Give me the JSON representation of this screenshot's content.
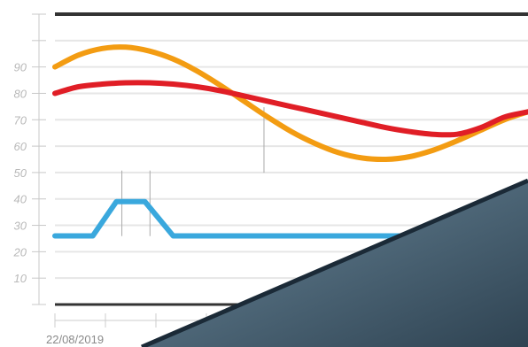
{
  "chart_data": {
    "type": "line",
    "title": "",
    "xlabel": "",
    "ylabel": "",
    "ylim": [
      0,
      110
    ],
    "y_ticks": [
      10,
      20,
      30,
      40,
      50,
      60,
      70,
      80,
      90
    ],
    "x_start_label": "22/08/2019",
    "grid": true,
    "legend": "none",
    "series": [
      {
        "color": "#f39c12",
        "x": [
          0,
          0.05,
          0.1,
          0.15,
          0.2,
          0.25,
          0.3,
          0.35,
          0.4,
          0.45,
          0.5,
          0.55,
          0.6,
          0.65,
          0.7,
          0.75,
          0.8,
          0.85,
          0.9,
          0.95,
          1
        ],
        "values": [
          90,
          94.5,
          97,
          97.5,
          96,
          93,
          88.5,
          83,
          77,
          71,
          65.5,
          61,
          57.5,
          55.5,
          55,
          56,
          58.5,
          62,
          66,
          70,
          73
        ]
      },
      {
        "color": "#e01e26",
        "x": [
          0,
          0.05,
          0.1,
          0.15,
          0.2,
          0.25,
          0.3,
          0.35,
          0.4,
          0.45,
          0.5,
          0.55,
          0.6,
          0.65,
          0.7,
          0.75,
          0.8,
          0.85,
          0.9,
          0.95,
          1
        ],
        "values": [
          80,
          82.5,
          83.5,
          84,
          84,
          83.5,
          82.5,
          81,
          79,
          77,
          75,
          73,
          71,
          69,
          67,
          65.5,
          64.5,
          64.5,
          67,
          71,
          73
        ]
      },
      {
        "color": "#3aa8dd",
        "x": [
          0,
          0.08,
          0.13,
          0.19,
          0.25,
          0.4,
          0.6,
          0.75
        ],
        "values": [
          26,
          26,
          39,
          39,
          26,
          26,
          26,
          26
        ]
      }
    ]
  }
}
